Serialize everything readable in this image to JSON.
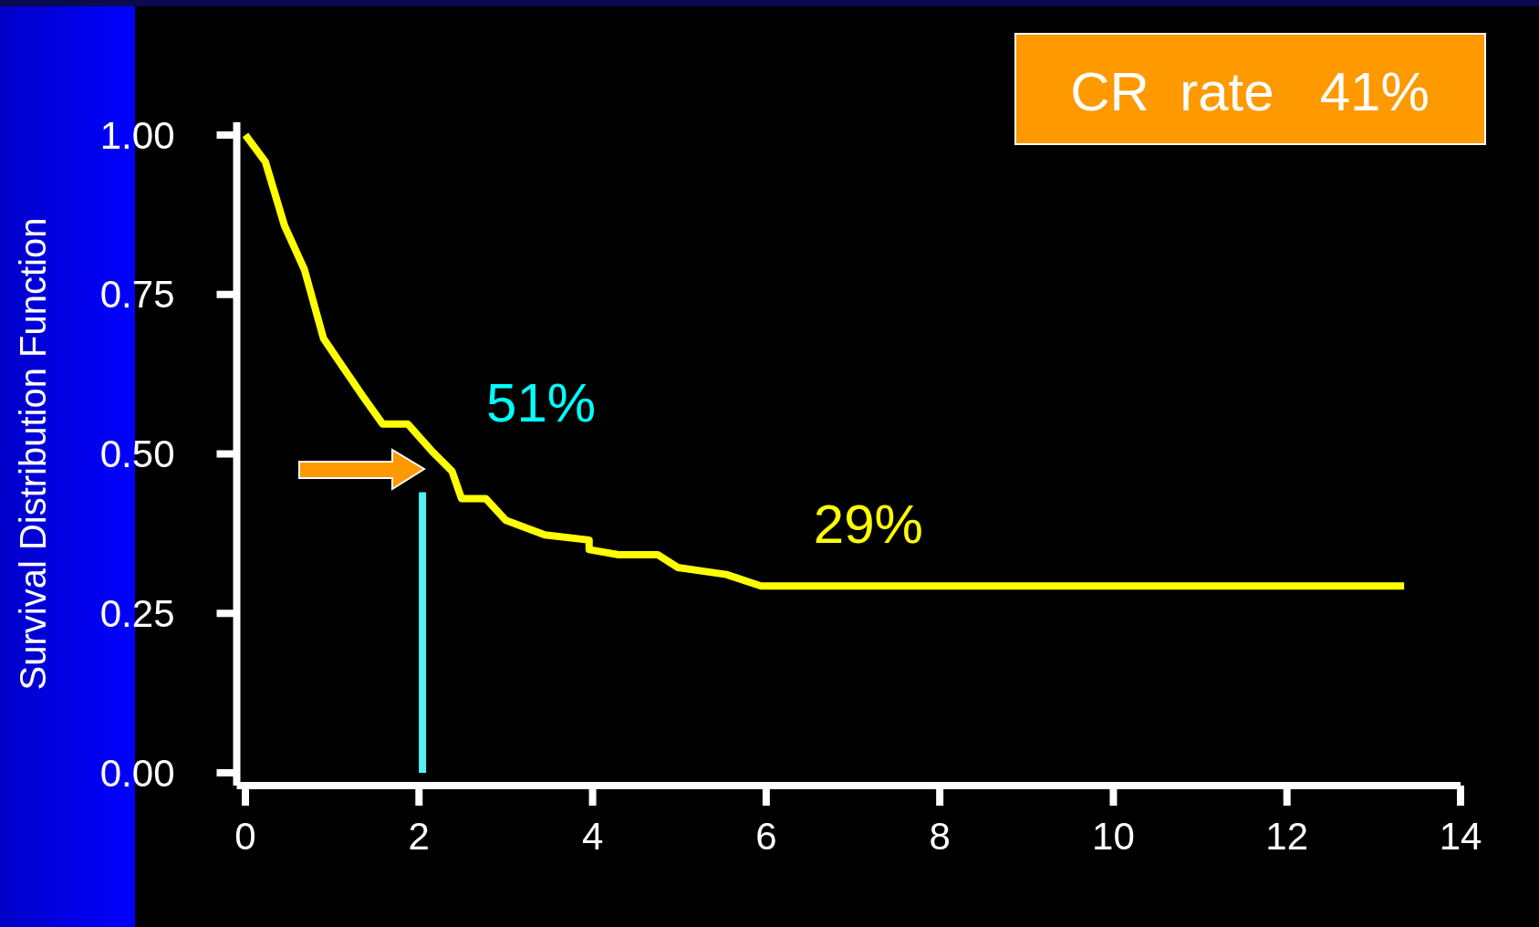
{
  "chart_data": {
    "type": "line",
    "ylabel": "Survival Distribution Function",
    "xlim": [
      -0.1,
      14
    ],
    "ylim": [
      -0.02,
      1.02
    ],
    "xticks": [
      0,
      2,
      4,
      6,
      8,
      10,
      12,
      14
    ],
    "yticks": [
      {
        "value": 0,
        "label": "0.00"
      },
      {
        "value": 0.25,
        "label": "0.25"
      },
      {
        "value": 0.5,
        "label": "0.50"
      },
      {
        "value": 0.75,
        "label": "0.75"
      },
      {
        "value": 1,
        "label": "1.00"
      }
    ],
    "series": [
      {
        "color": "#ffff00",
        "x": [
          0,
          0.23,
          0.45,
          0.68,
          0.9,
          1.13,
          1.36,
          1.58,
          1.87,
          2.15,
          2.38,
          2.49,
          2.77,
          3.0,
          3.45,
          3.96,
          3.96,
          4.3,
          4.75,
          4.98,
          5.54,
          5.94,
          13.35
        ],
        "values": [
          1.0,
          0.958,
          0.858,
          0.789,
          0.681,
          0.635,
          0.589,
          0.547,
          0.547,
          0.504,
          0.473,
          0.43,
          0.43,
          0.396,
          0.373,
          0.365,
          0.35,
          0.342,
          0.342,
          0.322,
          0.311,
          0.293,
          0.293
        ]
      },
      {
        "color": "#55f0f0",
        "x": [
          2.04,
          2.04
        ],
        "values": [
          0,
          0.44
        ]
      }
    ],
    "annotations": [
      {
        "text": "51%",
        "x": 2.04,
        "y": 0.51
      },
      {
        "text": "29%",
        "x": 6,
        "y": 0.29
      },
      "CR  rate   41%"
    ]
  }
}
